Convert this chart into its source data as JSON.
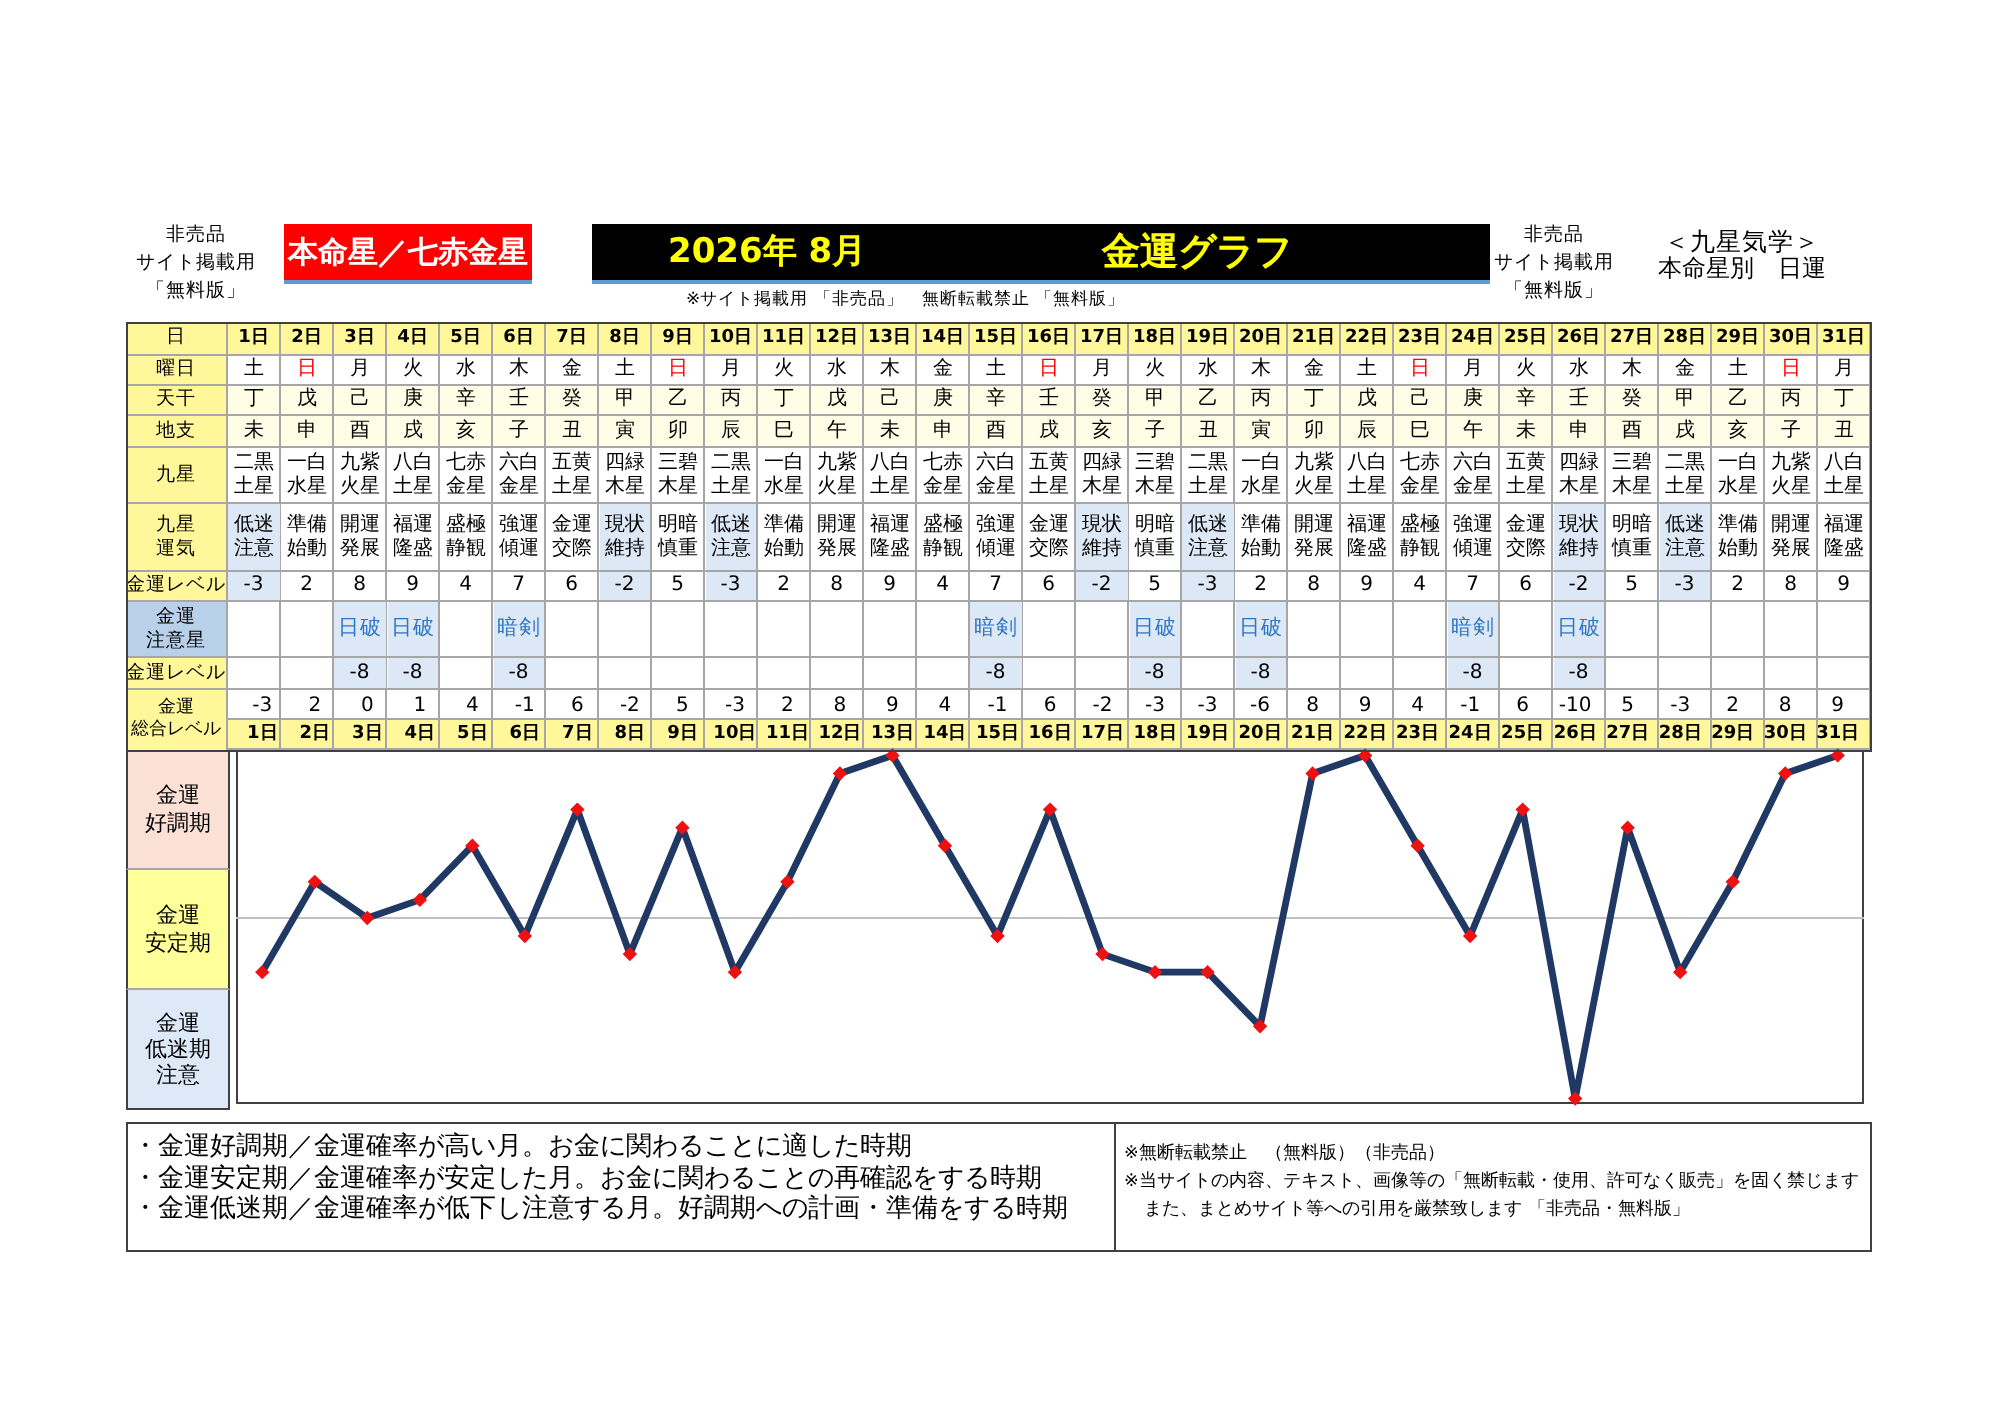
{
  "chart_data": {
    "type": "line",
    "title": "金運グラフ",
    "subtitle": "2026年 8月",
    "categories": [
      "1日",
      "2日",
      "3日",
      "4日",
      "5日",
      "6日",
      "7日",
      "8日",
      "9日",
      "10日",
      "11日",
      "12日",
      "13日",
      "14日",
      "15日",
      "16日",
      "17日",
      "18日",
      "19日",
      "20日",
      "21日",
      "22日",
      "23日",
      "24日",
      "25日",
      "26日",
      "27日",
      "28日",
      "29日",
      "30日",
      "31日"
    ],
    "series": [
      {
        "color": "#1f3864",
        "colors": [
          "#ee1111",
          "#ee1111",
          "#ee1111",
          "#ee1111",
          "#ee1111",
          "#ee1111",
          "#ee1111",
          "#ee1111",
          "#ee1111",
          "#ee1111",
          "#ee1111",
          "#ee1111",
          "#ee1111",
          "#ee1111",
          "#ee1111",
          "#ee1111",
          "#ee1111",
          "#ee1111",
          "#ee1111",
          "#ee1111",
          "#ee1111",
          "#ee1111",
          "#ee1111",
          "#ee1111",
          "#ee1111",
          "#ee1111",
          "#ee1111",
          "#ee1111",
          "#ee1111",
          "#ee1111",
          "#ee1111"
        ],
        "values": [
          -3,
          2,
          0,
          1,
          4,
          -1,
          6,
          -2,
          5,
          -3,
          2,
          8,
          9,
          4,
          -1,
          6,
          -2,
          -3,
          -3,
          -6,
          8,
          9,
          4,
          -1,
          6,
          -10,
          5,
          -3,
          2,
          8,
          9
        ]
      }
    ],
    "ylim": [
      -10.3,
      9.3
    ],
    "data_labels": true,
    "tick_labels": "x",
    "marker": "diamond",
    "line_style": "solid",
    "ref_lines": [
      {
        "axis": "y",
        "value": 0,
        "color": "#c0c0c0"
      }
    ],
    "annotations": [
      "非売品",
      "サイト掲載用",
      "「無料版」",
      "本命星／七赤金星",
      "※サイト掲載用 「非売品」　無断転載禁止 「無料版」",
      "非売品",
      "サイト掲載用",
      "「無料版」",
      "＜九星気学＞",
      "本命星別　日運",
      "日",
      "曜日",
      "土",
      "日",
      "月",
      "火",
      "水",
      "木",
      "金",
      "土",
      "日",
      "月",
      "火",
      "水",
      "木",
      "金",
      "土",
      "日",
      "月",
      "火",
      "水",
      "木",
      "金",
      "土",
      "日",
      "月",
      "火",
      "水",
      "木",
      "金",
      "土",
      "日",
      "月",
      "天干",
      "丁",
      "戊",
      "己",
      "庚",
      "辛",
      "壬",
      "癸",
      "甲",
      "乙",
      "丙",
      "丁",
      "戊",
      "己",
      "庚",
      "辛",
      "壬",
      "癸",
      "甲",
      "乙",
      "丙",
      "丁",
      "戊",
      "己",
      "庚",
      "辛",
      "壬",
      "癸",
      "甲",
      "乙",
      "丙",
      "丁",
      "地支",
      "未",
      "申",
      "酉",
      "戌",
      "亥",
      "子",
      "丑",
      "寅",
      "卯",
      "辰",
      "巳",
      "午",
      "未",
      "申",
      "酉",
      "戌",
      "亥",
      "子",
      "丑",
      "寅",
      "卯",
      "辰",
      "巳",
      "午",
      "未",
      "申",
      "酉",
      "戌",
      "亥",
      "子",
      "丑",
      "九星",
      "二黒土星",
      "一白水星",
      "九紫火星",
      "八白土星",
      "七赤金星",
      "六白金星",
      "五黄土星",
      "四緑木星",
      "三碧木星",
      "二黒土星",
      "一白水星",
      "九紫火星",
      "八白土星",
      "七赤金星",
      "六白金星",
      "五黄土星",
      "四緑木星",
      "三碧木星",
      "二黒土星",
      "一白水星",
      "九紫火星",
      "八白土星",
      "七赤金星",
      "六白金星",
      "五黄土星",
      "四緑木星",
      "三碧木星",
      "二黒土星",
      "一白水星",
      "九紫火星",
      "八白土星",
      "九星運気",
      "低迷注意",
      "準備始動",
      "開運発展",
      "福運隆盛",
      "盛極静観",
      "強運傾運",
      "金運交際",
      "現状維持",
      "明暗慎重",
      "低迷注意",
      "準備始動",
      "開運発展",
      "福運隆盛",
      "盛極静観",
      "強運傾運",
      "金運交際",
      "現状維持",
      "明暗慎重",
      "低迷注意",
      "準備始動",
      "開運発展",
      "福運隆盛",
      "盛極静観",
      "強運傾運",
      "金運交際",
      "現状維持",
      "明暗慎重",
      "低迷注意",
      "準備始動",
      "開運発展",
      "福運隆盛",
      "金運レベル",
      "-3",
      "2",
      "8",
      "9",
      "4",
      "7",
      "6",
      "-2",
      "5",
      "-3",
      "2",
      "8",
      "9",
      "4",
      "7",
      "6",
      "-2",
      "5",
      "-3",
      "2",
      "8",
      "9",
      "4",
      "7",
      "6",
      "-2",
      "5",
      "-3",
      "2",
      "8",
      "9",
      "金運注意星",
      null,
      null,
      "日破",
      "日破",
      null,
      "暗剣",
      null,
      null,
      null,
      null,
      null,
      null,
      null,
      null,
      "暗剣",
      null,
      null,
      "日破",
      null,
      "日破",
      null,
      null,
      null,
      "暗剣",
      null,
      "日破",
      null,
      null,
      null,
      null,
      null,
      "金運レベル",
      null,
      null,
      "-8",
      "-8",
      null,
      "-8",
      null,
      null,
      null,
      null,
      null,
      null,
      null,
      null,
      "-8",
      null,
      null,
      "-8",
      null,
      "-8",
      null,
      null,
      null,
      "-8",
      null,
      "-8",
      null,
      null,
      null,
      null,
      null,
      "金運総合レベル",
      "金運好調期",
      "金運安定期",
      "金運低迷期注意",
      "・金運好調期／金運確率が高い月。お金に関わることに適した時期",
      "・金運安定期／金運確率が安定した月。お金に関わることの再確認をする時期",
      "・金運低迷期／金運確率が低下し注意する月。好調期への計画・準備をする時期",
      "※無断転載禁止　（無料版）（非売品）",
      "※当サイトの内容、テキスト、画像等の「無断転載・使用、許可なく販売」を固く禁じます",
      "また、まとめサイト等への引用を厳禁致します 「非売品・無料版」"
    ]
  }
}
